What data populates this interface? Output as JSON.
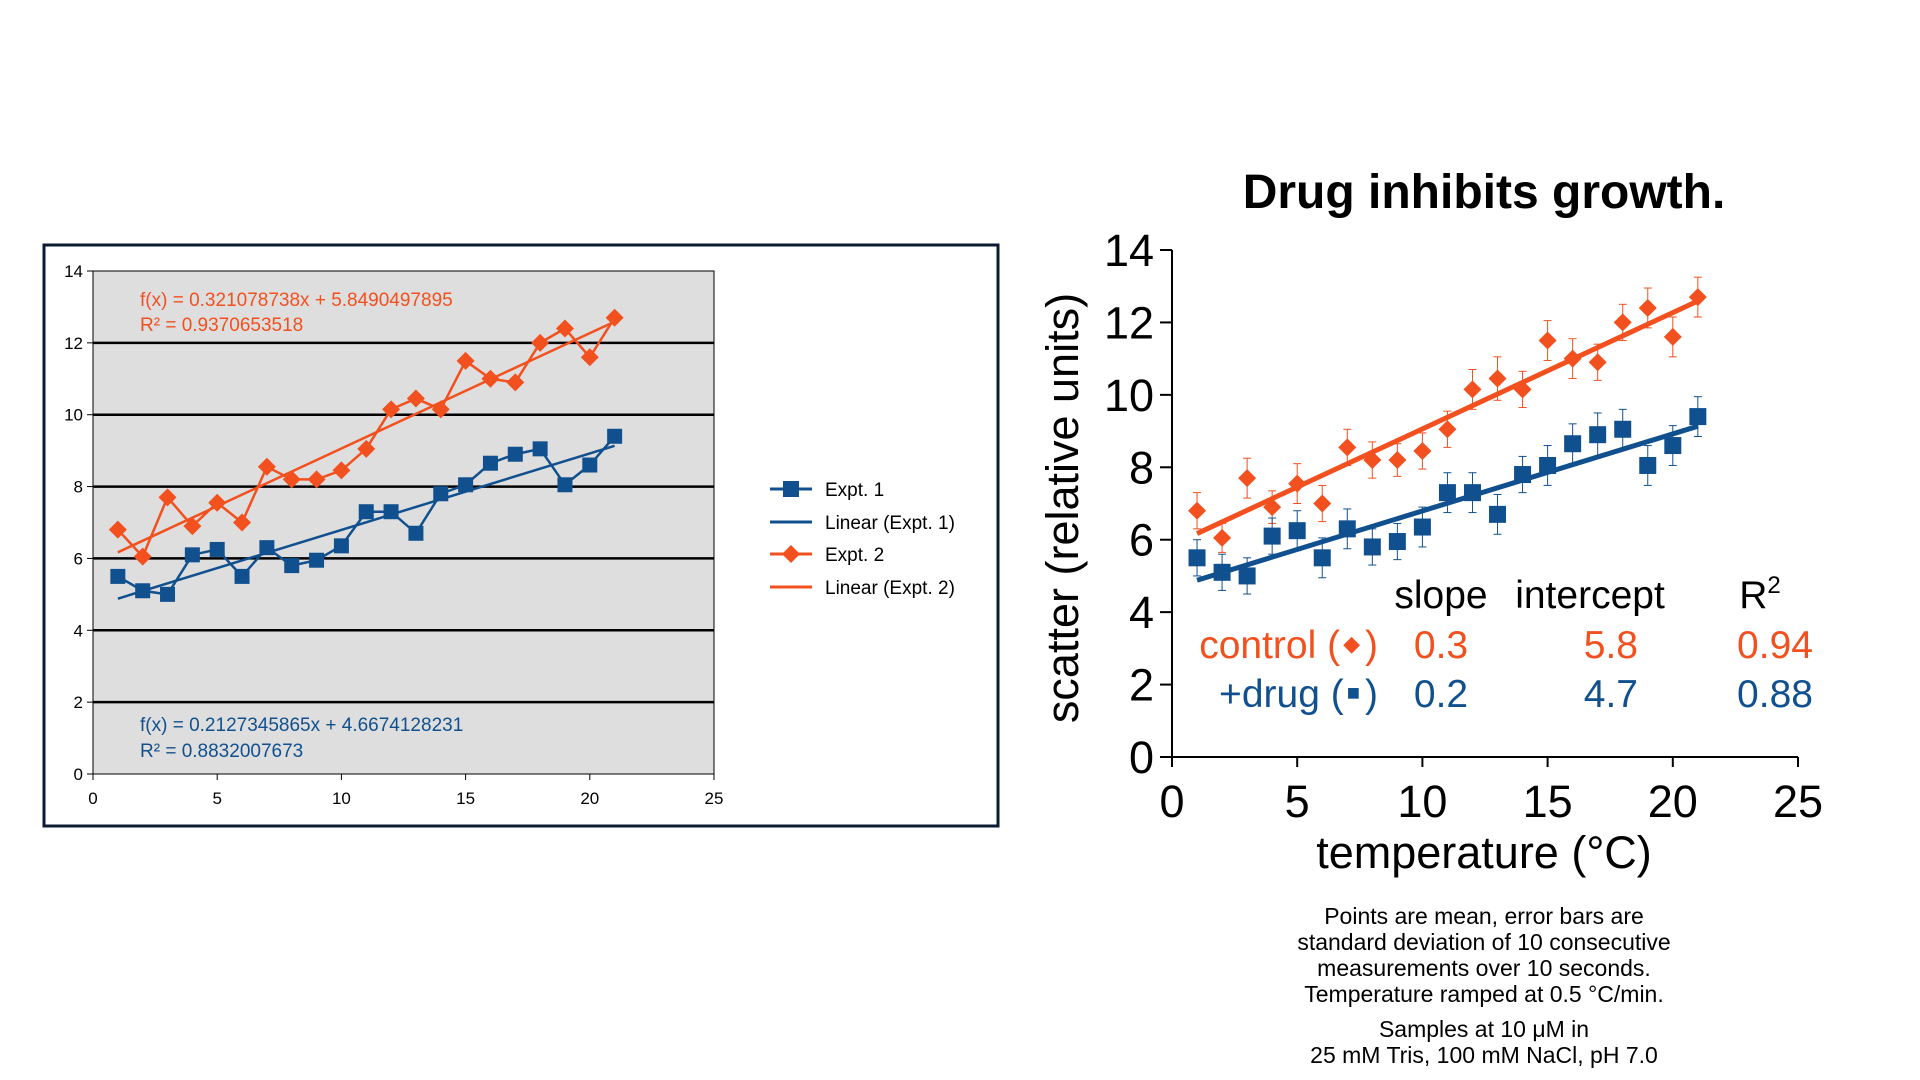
{
  "colors": {
    "expt1": "#11508f",
    "expt2": "#f2501e",
    "plot_bg": "#dedede",
    "frame": "#0c1b33"
  },
  "chart_data": [
    {
      "type": "scatter",
      "x": [
        1,
        2,
        3,
        4,
        5,
        6,
        7,
        8,
        9,
        10,
        11,
        12,
        13,
        14,
        15,
        16,
        17,
        18,
        19,
        20,
        21
      ],
      "xlim": [
        0,
        25
      ],
      "ylim": [
        0,
        14
      ],
      "x_ticks": [
        0,
        5,
        10,
        15,
        20,
        25
      ],
      "y_ticks": [
        0,
        2,
        4,
        6,
        8,
        10,
        12,
        14
      ],
      "grid": true,
      "legend": "right",
      "series": [
        {
          "name": "Expt. 1",
          "marker": "square",
          "values": [
            5.5,
            5.1,
            5.0,
            6.1,
            6.25,
            5.5,
            6.3,
            5.8,
            5.95,
            6.35,
            7.3,
            7.3,
            6.7,
            7.8,
            8.05,
            8.65,
            8.9,
            9.05,
            8.05,
            8.6,
            9.4
          ]
        },
        {
          "name": "Linear (Expt. 1)",
          "type": "line",
          "slope": 0.2127345865,
          "intercept": 4.6674128231
        },
        {
          "name": "Expt. 2",
          "marker": "diamond",
          "values": [
            6.8,
            6.05,
            7.7,
            6.9,
            7.55,
            7.0,
            8.55,
            8.2,
            8.2,
            8.45,
            9.05,
            10.15,
            10.45,
            10.15,
            11.5,
            11.0,
            10.9,
            12.0,
            12.4,
            11.6,
            12.7
          ]
        },
        {
          "name": "Linear (Expt. 2)",
          "type": "line",
          "slope": 0.321078738,
          "intercept": 5.8490497895
        }
      ],
      "annotations": {
        "expt2_fx": "f(x) = 0.321078738x + 5.8490497895",
        "expt2_r2": "R² = 0.9370653518",
        "expt1_fx": "f(x) = 0.2127345865x + 4.6674128231",
        "expt1_r2": "R² = 0.8832007673"
      }
    },
    {
      "type": "scatter",
      "title": "Drug inhibits growth.",
      "xlabel": "temperature (°C)",
      "ylabel": "scatter (relative units)",
      "x": [
        1,
        2,
        3,
        4,
        5,
        6,
        7,
        8,
        9,
        10,
        11,
        12,
        13,
        14,
        15,
        16,
        17,
        18,
        19,
        20,
        21
      ],
      "xlim": [
        0,
        25
      ],
      "ylim": [
        0,
        14
      ],
      "x_ticks": [
        0,
        5,
        10,
        15,
        20,
        25
      ],
      "y_ticks": [
        0,
        2,
        4,
        6,
        8,
        10,
        12,
        14
      ],
      "grid": false,
      "series": [
        {
          "name": "control",
          "marker": "diamond",
          "values": [
            6.8,
            6.05,
            7.7,
            6.9,
            7.55,
            7.0,
            8.55,
            8.2,
            8.2,
            8.45,
            9.05,
            10.15,
            10.45,
            10.15,
            11.5,
            11.0,
            10.9,
            12.0,
            12.4,
            11.6,
            12.7
          ],
          "error": [
            0.5,
            0.4,
            0.55,
            0.45,
            0.55,
            0.5,
            0.5,
            0.5,
            0.45,
            0.5,
            0.5,
            0.55,
            0.6,
            0.5,
            0.55,
            0.55,
            0.5,
            0.5,
            0.55,
            0.55,
            0.55
          ],
          "slope": 0.321078738,
          "intercept": 5.8490497895
        },
        {
          "name": "+drug",
          "marker": "square",
          "values": [
            5.5,
            5.1,
            5.0,
            6.1,
            6.25,
            5.5,
            6.3,
            5.8,
            5.95,
            6.35,
            7.3,
            7.3,
            6.7,
            7.8,
            8.05,
            8.65,
            8.9,
            9.05,
            8.05,
            8.6,
            9.4
          ],
          "error": [
            0.5,
            0.5,
            0.5,
            0.5,
            0.55,
            0.55,
            0.55,
            0.5,
            0.5,
            0.55,
            0.55,
            0.55,
            0.55,
            0.5,
            0.55,
            0.55,
            0.6,
            0.55,
            0.55,
            0.55,
            0.55
          ],
          "slope": 0.2127345865,
          "intercept": 4.6674128231
        }
      ],
      "table": {
        "headers": [
          "slope",
          "intercept",
          "R2"
        ],
        "rows": [
          {
            "label": "control (",
            "marker": "◆",
            "close": ")",
            "slope": "0.3",
            "intercept": "5.8",
            "r2": "0.94"
          },
          {
            "label": "+drug (",
            "marker": "■",
            "close": ")",
            "slope": "0.2",
            "intercept": "4.7",
            "r2": "0.88"
          }
        ]
      }
    }
  ],
  "caption": {
    "lines1": [
      "Points are mean, error bars are",
      "standard deviation of 10 consecutive",
      "measurements over 10 seconds.",
      "Temperature ramped at 0.5 °C/min."
    ],
    "lines2": [
      "Samples at 10 μM in",
      "25 mM Tris, 100 mM NaCl, pH 7.0"
    ]
  }
}
